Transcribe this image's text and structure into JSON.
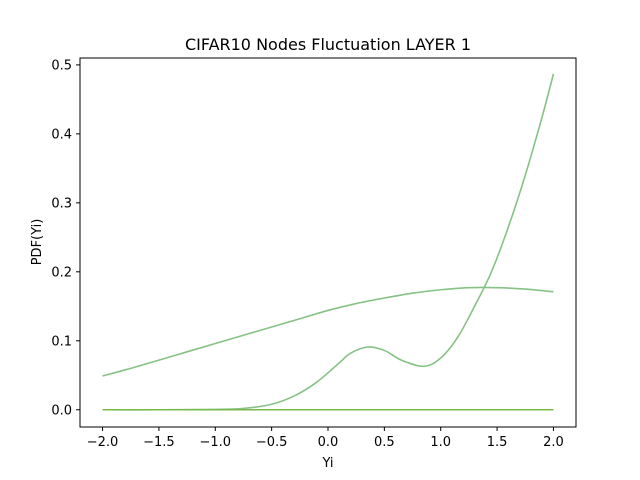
{
  "chart_data": {
    "type": "line",
    "title": "CIFAR10 Nodes Fluctuation LAYER 1",
    "xlabel": "Yi",
    "ylabel": "PDF(Yi)",
    "xlim": [
      -2.2,
      2.2
    ],
    "ylim": [
      -0.025,
      0.51
    ],
    "grid": false,
    "xticks": [
      "−2.0",
      "−1.5",
      "−1.0",
      "−0.5",
      "0.0",
      "0.5",
      "1.0",
      "1.5",
      "2.0"
    ],
    "xtick_values": [
      -2.0,
      -1.5,
      -1.0,
      -0.5,
      0.0,
      0.5,
      1.0,
      1.5,
      2.0
    ],
    "yticks": [
      "0.0",
      "0.1",
      "0.2",
      "0.3",
      "0.4",
      "0.5"
    ],
    "ytick_values": [
      0.0,
      0.1,
      0.2,
      0.3,
      0.4,
      0.5
    ],
    "series": [
      {
        "color": "#86c285",
        "x": [
          -2.0,
          -1.75,
          -1.5,
          -1.25,
          -1.0,
          -0.75,
          -0.5,
          -0.25,
          0.0,
          0.25,
          0.5,
          0.75,
          1.0,
          1.25,
          1.5,
          1.75,
          2.0
        ],
        "y": [
          0.049,
          0.06,
          0.072,
          0.084,
          0.096,
          0.108,
          0.12,
          0.132,
          0.144,
          0.154,
          0.162,
          0.169,
          0.174,
          0.177,
          0.177,
          0.175,
          0.171
        ]
      },
      {
        "color": "#86c285",
        "x": [
          -2.0,
          -1.5,
          -1.0,
          -0.75,
          -0.5,
          -0.3,
          -0.1,
          0.1,
          0.2,
          0.35,
          0.5,
          0.65,
          0.85,
          1.0,
          1.15,
          1.3,
          1.45,
          1.6,
          1.75,
          1.9,
          2.0
        ],
        "y": [
          0.0,
          0.0,
          0.0005,
          0.002,
          0.008,
          0.02,
          0.04,
          0.068,
          0.082,
          0.091,
          0.086,
          0.072,
          0.063,
          0.075,
          0.105,
          0.15,
          0.2,
          0.265,
          0.34,
          0.425,
          0.487
        ]
      },
      {
        "color": "#7ab84a",
        "x": [
          -2.0,
          2.0
        ],
        "y": [
          0.0,
          0.0
        ]
      }
    ]
  }
}
